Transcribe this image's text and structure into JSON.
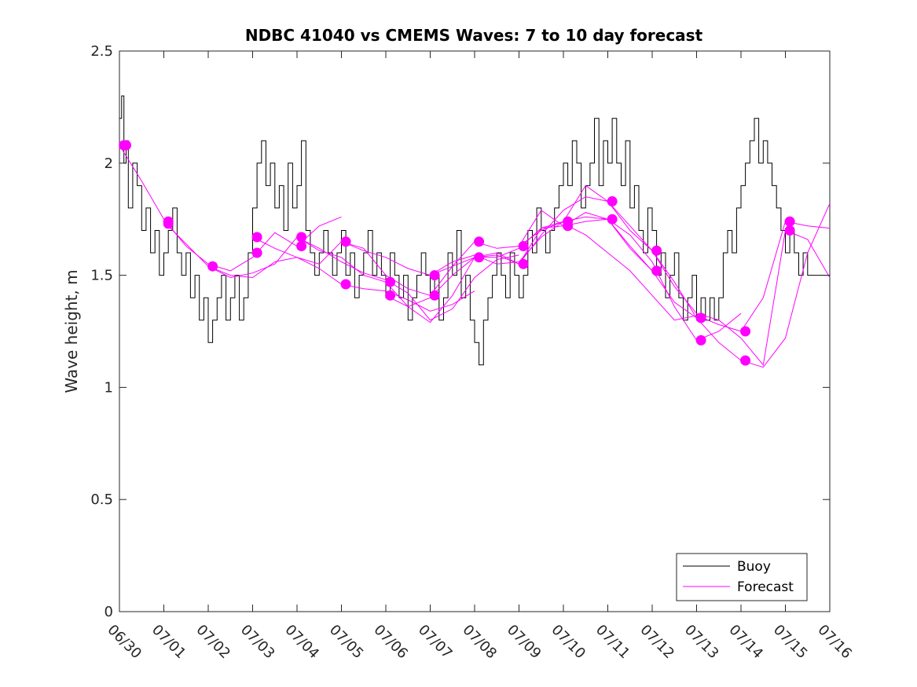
{
  "chart_data": {
    "type": "line",
    "title": "NDBC 41040 vs CMEMS Waves: 7 to 10 day forecast",
    "xlabel": "",
    "ylabel": "Wave height, m",
    "xlim": [
      0,
      16
    ],
    "ylim": [
      0,
      2.5
    ],
    "x_tick_values": [
      0,
      1,
      2,
      3,
      4,
      5,
      6,
      7,
      8,
      9,
      10,
      11,
      12,
      13,
      14,
      15,
      16
    ],
    "x_tick_labels": [
      "06/30",
      "07/01",
      "07/02",
      "07/03",
      "07/04",
      "07/05",
      "07/06",
      "07/07",
      "07/08",
      "07/09",
      "07/10",
      "07/11",
      "07/12",
      "07/13",
      "07/14",
      "07/15",
      "07/16"
    ],
    "y_ticks": [
      0,
      0.5,
      1,
      1.5,
      2,
      2.5
    ],
    "y_tick_labels": [
      "0",
      "0.5",
      "1",
      "1.5",
      "2",
      "2.5"
    ],
    "grid": false,
    "legend": {
      "position": "bottom-right",
      "entries": [
        {
          "name": "Buoy",
          "color": "#000000"
        },
        {
          "name": "Forecast",
          "color": "#ff00ff"
        }
      ]
    },
    "series": [
      {
        "name": "Buoy",
        "color": "#000000",
        "x": [
          0,
          0.05,
          0.1,
          0.15,
          0.2,
          0.3,
          0.4,
          0.5,
          0.6,
          0.7,
          0.8,
          0.9,
          1.0,
          1.1,
          1.2,
          1.3,
          1.4,
          1.5,
          1.6,
          1.7,
          1.8,
          1.9,
          2.0,
          2.1,
          2.2,
          2.3,
          2.4,
          2.5,
          2.6,
          2.7,
          2.8,
          2.9,
          3.0,
          3.1,
          3.2,
          3.3,
          3.4,
          3.5,
          3.6,
          3.7,
          3.8,
          3.9,
          4.0,
          4.1,
          4.2,
          4.3,
          4.4,
          4.5,
          4.6,
          4.7,
          4.8,
          4.9,
          5.0,
          5.1,
          5.2,
          5.3,
          5.4,
          5.5,
          5.6,
          5.7,
          5.8,
          5.9,
          6.0,
          6.1,
          6.2,
          6.3,
          6.4,
          6.5,
          6.6,
          6.7,
          6.8,
          6.9,
          7.0,
          7.1,
          7.2,
          7.3,
          7.4,
          7.5,
          7.6,
          7.7,
          7.8,
          7.9,
          8.0,
          8.1,
          8.2,
          8.3,
          8.4,
          8.5,
          8.6,
          8.7,
          8.8,
          8.9,
          9.0,
          9.1,
          9.2,
          9.3,
          9.4,
          9.5,
          9.6,
          9.7,
          9.8,
          9.9,
          10.0,
          10.1,
          10.2,
          10.3,
          10.4,
          10.5,
          10.6,
          10.7,
          10.8,
          10.9,
          11.0,
          11.1,
          11.2,
          11.3,
          11.4,
          11.5,
          11.6,
          11.7,
          11.8,
          11.9,
          12.0,
          12.1,
          12.2,
          12.3,
          12.4,
          12.5,
          12.6,
          12.7,
          12.8,
          12.9,
          13.0,
          13.1,
          13.2,
          13.3,
          13.4,
          13.5,
          13.6,
          13.7,
          13.8,
          13.9,
          14.0,
          14.1,
          14.2,
          14.3,
          14.4,
          14.5,
          14.6,
          14.7,
          14.8,
          14.9,
          15.0,
          15.1,
          15.2,
          15.3,
          15.4,
          15.5,
          15.6,
          15.7,
          15.8,
          15.9,
          16.0
        ],
        "y": [
          2.2,
          2.3,
          2.0,
          2.1,
          1.8,
          2.0,
          1.9,
          1.7,
          1.8,
          1.6,
          1.7,
          1.5,
          1.6,
          1.7,
          1.8,
          1.6,
          1.5,
          1.6,
          1.4,
          1.5,
          1.3,
          1.4,
          1.2,
          1.3,
          1.4,
          1.5,
          1.3,
          1.4,
          1.5,
          1.3,
          1.4,
          1.6,
          1.8,
          2.0,
          2.1,
          1.9,
          2.0,
          1.8,
          1.9,
          1.7,
          2.0,
          1.8,
          1.9,
          2.1,
          1.7,
          1.6,
          1.5,
          1.6,
          1.7,
          1.6,
          1.5,
          1.6,
          1.7,
          1.5,
          1.6,
          1.4,
          1.5,
          1.6,
          1.7,
          1.5,
          1.6,
          1.5,
          1.4,
          1.6,
          1.5,
          1.4,
          1.5,
          1.3,
          1.4,
          1.5,
          1.6,
          1.5,
          1.4,
          1.5,
          1.3,
          1.4,
          1.6,
          1.5,
          1.7,
          1.4,
          1.5,
          1.3,
          1.2,
          1.1,
          1.3,
          1.4,
          1.5,
          1.6,
          1.5,
          1.4,
          1.6,
          1.5,
          1.4,
          1.5,
          1.7,
          1.6,
          1.8,
          1.7,
          1.6,
          1.7,
          1.8,
          1.9,
          2.0,
          1.9,
          2.1,
          2.0,
          1.8,
          1.9,
          2.0,
          2.2,
          1.9,
          2.1,
          2.0,
          2.2,
          2.0,
          1.9,
          2.1,
          1.8,
          1.9,
          1.7,
          1.6,
          1.8,
          1.7,
          1.5,
          1.6,
          1.4,
          1.5,
          1.6,
          1.4,
          1.3,
          1.4,
          1.5,
          1.3,
          1.4,
          1.3,
          1.4,
          1.3,
          1.4,
          1.6,
          1.7,
          1.6,
          1.8,
          1.9,
          2.0,
          2.1,
          2.2,
          2.0,
          2.1,
          2.0,
          1.9,
          1.8,
          1.7,
          1.6,
          1.7,
          1.6,
          1.5,
          1.6,
          1.5,
          1.5,
          1.5,
          1.5,
          1.5,
          1.5
        ]
      },
      {
        "name": "Forecast",
        "color": "#ff00ff",
        "runs": [
          {
            "x": [
              0.0,
              0.5,
              1.0,
              1.5,
              2.0,
              2.5,
              3.0,
              3.5,
              4.0,
              4.5,
              5.0
            ],
            "y": [
              2.08,
              1.92,
              1.75,
              1.63,
              1.55,
              1.52,
              1.58,
              1.69,
              1.63,
              1.72,
              1.76
            ]
          },
          {
            "x": [
              1.0,
              1.5,
              2.0,
              2.5,
              3.0,
              3.5,
              4.0,
              4.5,
              5.0,
              5.5,
              6.0,
              6.5,
              7.0,
              7.5,
              8.0
            ],
            "y": [
              1.74,
              1.64,
              1.54,
              1.5,
              1.49,
              1.56,
              1.58,
              1.53,
              1.46,
              1.44,
              1.43,
              1.39,
              1.34,
              1.37,
              1.43
            ]
          },
          {
            "x": [
              2.0,
              2.5,
              3.0,
              3.5,
              4.0,
              4.5,
              5.0,
              5.5,
              6.0,
              6.5,
              7.0,
              7.5,
              8.0,
              8.5,
              9.0
            ],
            "y": [
              1.54,
              1.49,
              1.51,
              1.55,
              1.67,
              1.62,
              1.56,
              1.51,
              1.48,
              1.42,
              1.3,
              1.35,
              1.49,
              1.57,
              1.59
            ]
          },
          {
            "x": [
              3.0,
              3.5,
              4.0,
              4.5,
              5.0,
              5.5,
              6.0,
              6.5,
              7.0,
              7.5,
              8.0,
              8.5,
              9.0,
              9.5,
              10.0
            ],
            "y": [
              1.67,
              1.62,
              1.58,
              1.55,
              1.65,
              1.61,
              1.58,
              1.53,
              1.5,
              1.56,
              1.59,
              1.55,
              1.56,
              1.67,
              1.74
            ]
          },
          {
            "x": [
              4.0,
              4.5,
              5.0,
              5.5,
              6.0,
              6.5,
              7.0,
              7.5,
              8.0,
              8.5,
              9.0,
              9.5,
              10.0,
              10.5,
              11.0
            ],
            "y": [
              1.67,
              1.61,
              1.58,
              1.5,
              1.47,
              1.36,
              1.29,
              1.41,
              1.58,
              1.59,
              1.55,
              1.68,
              1.79,
              1.85,
              1.83
            ]
          },
          {
            "x": [
              5.0,
              5.5,
              6.0,
              6.5,
              7.0,
              7.5,
              8.0,
              8.5,
              9.0,
              9.5,
              10.0,
              10.5,
              11.0,
              11.5,
              12.0
            ],
            "y": [
              1.65,
              1.62,
              1.5,
              1.44,
              1.41,
              1.54,
              1.65,
              1.62,
              1.63,
              1.79,
              1.72,
              1.74,
              1.75,
              1.63,
              1.52
            ]
          },
          {
            "x": [
              6.0,
              6.5,
              7.0,
              7.5,
              8.0,
              8.5,
              9.0,
              9.5,
              10.0,
              10.5,
              11.0,
              11.5,
              12.0,
              12.5,
              13.0
            ],
            "y": [
              1.41,
              1.36,
              1.4,
              1.5,
              1.58,
              1.58,
              1.62,
              1.71,
              1.74,
              1.9,
              1.83,
              1.7,
              1.61,
              1.47,
              1.31
            ]
          },
          {
            "x": [
              7.0,
              7.5,
              8.0,
              8.5,
              9.0,
              9.5,
              10.0,
              10.5,
              11.0,
              11.5,
              12.0,
              12.5,
              13.0,
              13.5,
              14.0
            ],
            "y": [
              1.5,
              1.54,
              1.58,
              1.6,
              1.55,
              1.71,
              1.72,
              1.78,
              1.75,
              1.68,
              1.56,
              1.36,
              1.21,
              1.25,
              1.33
            ]
          },
          {
            "x": [
              9.0,
              9.5,
              10.0,
              10.5,
              11.0,
              11.5,
              12.0,
              12.5,
              13.0,
              13.5,
              14.0,
              14.5,
              15.0,
              15.5,
              16.0
            ],
            "y": [
              1.63,
              1.7,
              1.74,
              1.76,
              1.75,
              1.62,
              1.52,
              1.38,
              1.31,
              1.2,
              1.12,
              1.09,
              1.22,
              1.6,
              1.82
            ]
          },
          {
            "x": [
              10.0,
              10.5,
              11.0,
              11.5,
              12.0,
              12.5,
              13.0,
              13.5,
              14.0,
              14.5,
              15.0,
              15.5,
              16.0
            ],
            "y": [
              1.73,
              1.68,
              1.6,
              1.52,
              1.41,
              1.3,
              1.32,
              1.28,
              1.25,
              1.4,
              1.74,
              1.72,
              1.71
            ]
          },
          {
            "x": [
              11.0,
              11.5,
              12.0,
              12.5,
              13.0,
              13.5,
              14.0,
              14.5,
              15.0,
              15.5,
              16.0
            ],
            "y": [
              1.83,
              1.72,
              1.61,
              1.45,
              1.33,
              1.3,
              1.22,
              1.1,
              1.7,
              1.66,
              1.49
            ]
          }
        ],
        "markers": [
          {
            "x": 0.1,
            "y": 2.08
          },
          {
            "x": 0.15,
            "y": 2.08
          },
          {
            "x": 1.1,
            "y": 1.74
          },
          {
            "x": 1.1,
            "y": 1.73
          },
          {
            "x": 2.1,
            "y": 1.54
          },
          {
            "x": 3.1,
            "y": 1.67
          },
          {
            "x": 3.1,
            "y": 1.6
          },
          {
            "x": 4.1,
            "y": 1.67
          },
          {
            "x": 4.1,
            "y": 1.63
          },
          {
            "x": 5.1,
            "y": 1.65
          },
          {
            "x": 5.1,
            "y": 1.46
          },
          {
            "x": 6.1,
            "y": 1.47
          },
          {
            "x": 6.1,
            "y": 1.41
          },
          {
            "x": 7.1,
            "y": 1.5
          },
          {
            "x": 7.1,
            "y": 1.41
          },
          {
            "x": 8.1,
            "y": 1.65
          },
          {
            "x": 8.1,
            "y": 1.58
          },
          {
            "x": 9.1,
            "y": 1.63
          },
          {
            "x": 9.1,
            "y": 1.55
          },
          {
            "x": 10.1,
            "y": 1.74
          },
          {
            "x": 10.1,
            "y": 1.72
          },
          {
            "x": 11.1,
            "y": 1.83
          },
          {
            "x": 11.1,
            "y": 1.75
          },
          {
            "x": 12.1,
            "y": 1.61
          },
          {
            "x": 12.1,
            "y": 1.52
          },
          {
            "x": 13.1,
            "y": 1.31
          },
          {
            "x": 13.1,
            "y": 1.21
          },
          {
            "x": 14.1,
            "y": 1.25
          },
          {
            "x": 14.1,
            "y": 1.12
          },
          {
            "x": 15.1,
            "y": 1.74
          },
          {
            "x": 15.1,
            "y": 1.7
          }
        ]
      }
    ]
  }
}
